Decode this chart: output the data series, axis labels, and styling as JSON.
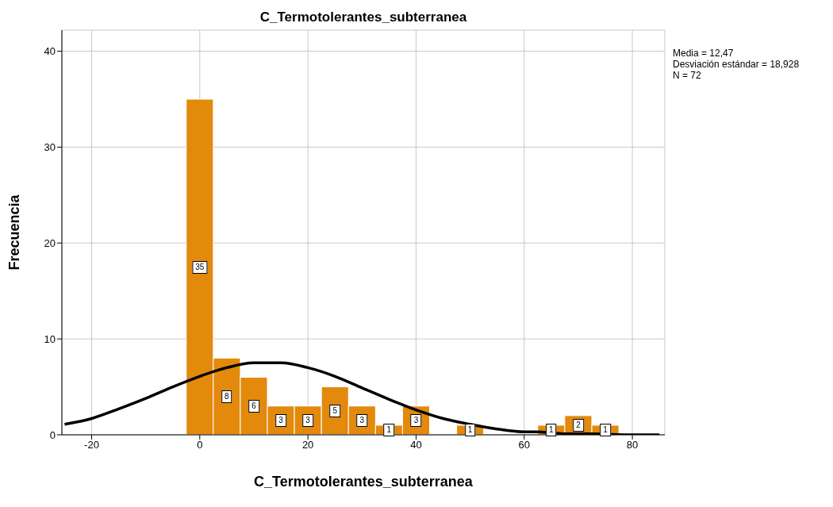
{
  "chart_data": {
    "type": "histogram",
    "title": "C_Termotolerantes_subterranea",
    "xlabel": "C_Termotolerantes_subterranea",
    "ylabel": "Frecuencia",
    "bins": [
      -2.5,
      2.5,
      7.5,
      12.5,
      17.5,
      22.5,
      27.5,
      32.5,
      37.5,
      42.5,
      47.5,
      52.5,
      57.5,
      62.5,
      67.5,
      72.5,
      77.5
    ],
    "values": [
      35,
      8,
      6,
      3,
      3,
      5,
      3,
      1,
      3,
      0,
      1,
      0,
      0,
      1,
      2,
      1
    ],
    "value_labels": [
      "35",
      "8",
      "6",
      "3",
      "3",
      "5",
      "3",
      "1",
      "3",
      null,
      "1",
      null,
      null,
      "1",
      "2",
      "1"
    ],
    "color": "#e3890c",
    "series": [
      {
        "type": "line",
        "color": "#000000",
        "x": [
          -25,
          -20,
          -15,
          -10,
          -5,
          0,
          5,
          10,
          15,
          20,
          25,
          30,
          35,
          40,
          45,
          50,
          55,
          60,
          62,
          68,
          72,
          80,
          85
        ],
        "values": [
          1.1,
          1.7,
          2.7,
          3.8,
          5.0,
          6.1,
          7.0,
          7.5,
          7.5,
          7.0,
          6.1,
          4.9,
          3.7,
          2.6,
          1.7,
          1.1,
          0.6,
          0.3,
          0.3,
          0.1,
          0.1,
          0.0,
          0.0
        ]
      }
    ],
    "xlim": [
      -25.5,
      86
    ],
    "xticks": [
      -20,
      0,
      20,
      40,
      60,
      80
    ],
    "ylim": [
      0,
      42.2
    ],
    "yticks": [
      0,
      10,
      20,
      30,
      40
    ],
    "grid": true,
    "marker": "none",
    "line_style": "solid",
    "annotations": [
      "Media = 12,47",
      "Desviación estándar = 18,928",
      "N = 72"
    ]
  }
}
